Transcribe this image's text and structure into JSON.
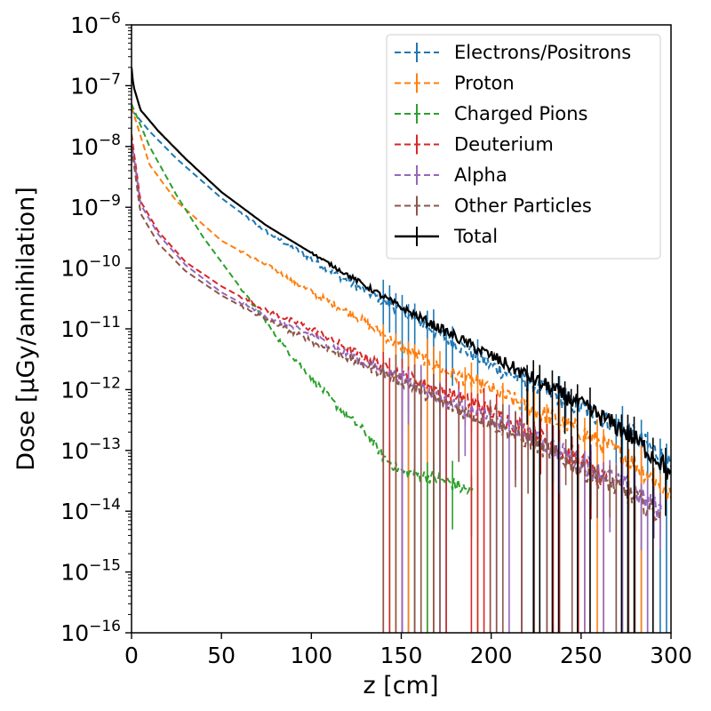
{
  "chart_data": {
    "type": "line",
    "title": "",
    "xlabel": "z [cm]",
    "ylabel": "Dose [µGy/annihilation]",
    "xlim": [
      0,
      300
    ],
    "ylim_log10": [
      -16,
      -6
    ],
    "y_scale": "log",
    "x_ticks": [
      0,
      50,
      100,
      150,
      200,
      250,
      300
    ],
    "y_tick_exponents": [
      -16,
      -15,
      -14,
      -13,
      -12,
      -11,
      -10,
      -9,
      -8,
      -7,
      -6
    ],
    "y_tick_base": "10",
    "legend_position": "top-right",
    "grid": false,
    "series": [
      {
        "name": "Electrons/Positrons",
        "color": "#1f77b4",
        "style": "dashed",
        "x": [
          0,
          10,
          25,
          50,
          75,
          100,
          125,
          150,
          175,
          200,
          225,
          250,
          275,
          295,
          300
        ],
        "log10_y": [
          -7.4,
          -7.75,
          -8.2,
          -8.85,
          -9.4,
          -9.85,
          -10.3,
          -10.7,
          -11.15,
          -11.6,
          -11.95,
          -12.3,
          -12.65,
          -13.1,
          -13.3
        ]
      },
      {
        "name": "Proton",
        "color": "#ff7f0e",
        "style": "dashed",
        "x": [
          0,
          10,
          25,
          50,
          75,
          100,
          125,
          150,
          175,
          200,
          225,
          250,
          275,
          295,
          300
        ],
        "log10_y": [
          -7.35,
          -8.3,
          -8.9,
          -9.55,
          -9.95,
          -10.4,
          -10.8,
          -11.3,
          -11.7,
          -12.0,
          -12.35,
          -12.7,
          -13.1,
          -13.6,
          -13.8
        ]
      },
      {
        "name": "Charged Pions",
        "color": "#2ca02c",
        "style": "dashed",
        "x": [
          0,
          10,
          25,
          40,
          55,
          70,
          85,
          100,
          115,
          130,
          140,
          150,
          160,
          175,
          190
        ],
        "log10_y": [
          -7.3,
          -8.0,
          -8.8,
          -9.5,
          -10.1,
          -10.7,
          -11.3,
          -11.8,
          -12.3,
          -12.7,
          -13.1,
          -13.35,
          -13.4,
          -13.5,
          -13.7
        ]
      },
      {
        "name": "Deuterium",
        "color": "#d62728",
        "style": "dashed",
        "x": [
          0,
          5,
          15,
          30,
          50,
          75,
          100,
          125,
          150,
          175,
          200,
          225,
          250,
          265
        ],
        "log10_y": [
          -7.8,
          -8.9,
          -9.4,
          -9.9,
          -10.3,
          -10.7,
          -11.0,
          -11.4,
          -11.75,
          -12.05,
          -12.35,
          -12.75,
          -13.2,
          -13.6
        ]
      },
      {
        "name": "Alpha",
        "color": "#9467bd",
        "style": "dashed",
        "x": [
          0,
          5,
          15,
          30,
          50,
          75,
          100,
          125,
          150,
          175,
          200,
          225,
          250,
          275,
          295
        ],
        "log10_y": [
          -7.9,
          -8.95,
          -9.45,
          -9.95,
          -10.4,
          -10.8,
          -11.1,
          -11.5,
          -11.8,
          -12.2,
          -12.5,
          -12.8,
          -13.2,
          -13.6,
          -14.0
        ]
      },
      {
        "name": "Other Particles",
        "color": "#8c564b",
        "style": "dashed",
        "x": [
          0,
          5,
          15,
          30,
          50,
          75,
          100,
          125,
          150,
          175,
          200,
          225,
          250,
          275,
          295
        ],
        "log10_y": [
          -8.0,
          -9.1,
          -9.6,
          -10.05,
          -10.45,
          -10.85,
          -11.2,
          -11.55,
          -11.85,
          -12.25,
          -12.55,
          -12.9,
          -13.3,
          -13.7,
          -14.1
        ]
      },
      {
        "name": "Total",
        "color": "#000000",
        "style": "solid",
        "x": [
          0,
          1,
          5,
          15,
          30,
          50,
          75,
          100,
          125,
          150,
          175,
          200,
          225,
          250,
          275,
          295,
          300
        ],
        "log10_y": [
          -6.7,
          -7.0,
          -7.4,
          -7.75,
          -8.2,
          -8.75,
          -9.3,
          -9.75,
          -10.2,
          -10.65,
          -11.05,
          -11.45,
          -11.85,
          -12.25,
          -12.7,
          -13.2,
          -13.45
        ]
      }
    ]
  }
}
